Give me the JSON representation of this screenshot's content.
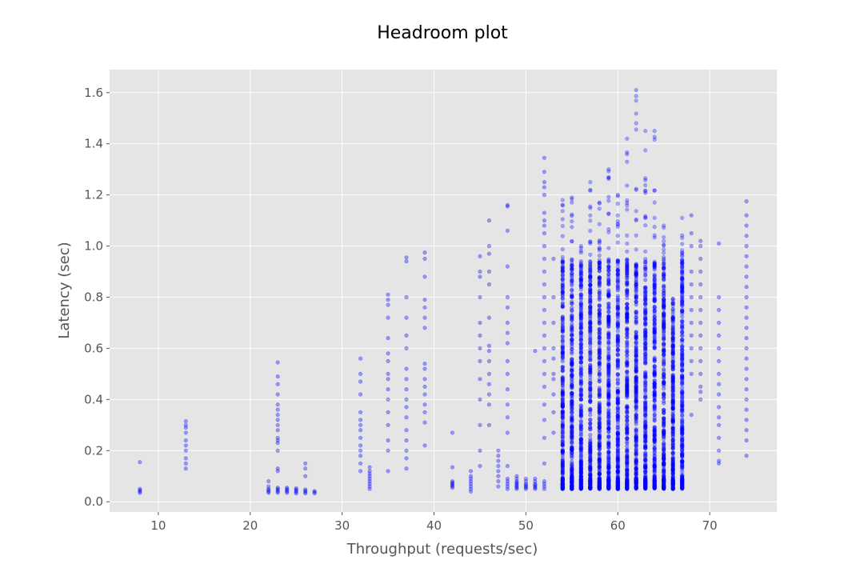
{
  "chart_data": {
    "type": "scatter",
    "title": "Headroom plot",
    "xlabel": "Throughput (requests/sec)",
    "ylabel": "Latency (sec)",
    "xlim": [
      4.7,
      77.3
    ],
    "ylim": [
      -0.04,
      1.69
    ],
    "xticks": [
      10,
      20,
      30,
      40,
      50,
      60,
      70
    ],
    "yticks": [
      0.0,
      0.2,
      0.4,
      0.6,
      0.8,
      1.0,
      1.2,
      1.4,
      1.6
    ],
    "xtick_labels": [
      "10",
      "20",
      "30",
      "40",
      "50",
      "60",
      "70"
    ],
    "ytick_labels": [
      "0.0",
      "0.2",
      "0.4",
      "0.6",
      "0.8",
      "1.0",
      "1.2",
      "1.4",
      "1.6"
    ],
    "grid": true,
    "style": "ggplot",
    "colors": {
      "background": "#e5e5e5",
      "grid": "#ffffff",
      "marker": "#0000ff"
    },
    "series": [
      {
        "x": 8,
        "y": [
          0.035,
          0.04,
          0.045,
          0.05,
          0.155
        ]
      },
      {
        "x": 13,
        "y": [
          0.13,
          0.15,
          0.17,
          0.2,
          0.22,
          0.24,
          0.27,
          0.29,
          0.3,
          0.315
        ]
      },
      {
        "x": 22,
        "y": [
          0.035,
          0.04,
          0.045,
          0.05,
          0.06,
          0.08
        ]
      },
      {
        "x": 23,
        "y": [
          0.035,
          0.04,
          0.045,
          0.05,
          0.055,
          0.12,
          0.13,
          0.2,
          0.23,
          0.24,
          0.25,
          0.28,
          0.3,
          0.32,
          0.34,
          0.36,
          0.38,
          0.42,
          0.46,
          0.49,
          0.545
        ]
      },
      {
        "x": 24,
        "y": [
          0.035,
          0.04,
          0.045,
          0.05,
          0.055
        ]
      },
      {
        "x": 25,
        "y": [
          0.033,
          0.038,
          0.043,
          0.048,
          0.053
        ]
      },
      {
        "x": 26,
        "y": [
          0.033,
          0.038,
          0.043,
          0.048,
          0.1,
          0.13,
          0.15
        ]
      },
      {
        "x": 27,
        "y": [
          0.033,
          0.038,
          0.042
        ]
      },
      {
        "x": 32,
        "y": [
          0.12,
          0.15,
          0.18,
          0.2,
          0.22,
          0.25,
          0.28,
          0.3,
          0.32,
          0.35,
          0.42,
          0.47,
          0.5,
          0.56
        ]
      },
      {
        "x": 33,
        "y": [
          0.05,
          0.06,
          0.07,
          0.08,
          0.09,
          0.1,
          0.11,
          0.12,
          0.135
        ]
      },
      {
        "x": 35,
        "y": [
          0.12,
          0.2,
          0.24,
          0.3,
          0.35,
          0.4,
          0.44,
          0.48,
          0.5,
          0.55,
          0.58,
          0.64,
          0.72,
          0.77,
          0.79,
          0.81
        ]
      },
      {
        "x": 37,
        "y": [
          0.13,
          0.17,
          0.2,
          0.24,
          0.28,
          0.33,
          0.37,
          0.4,
          0.44,
          0.48,
          0.52,
          0.6,
          0.65,
          0.72,
          0.8,
          0.94,
          0.955
        ]
      },
      {
        "x": 39,
        "y": [
          0.22,
          0.31,
          0.35,
          0.38,
          0.42,
          0.45,
          0.48,
          0.52,
          0.54,
          0.68,
          0.72,
          0.76,
          0.79,
          0.88,
          0.95,
          0.975
        ]
      },
      {
        "x": 42,
        "y": [
          0.055,
          0.06,
          0.065,
          0.07,
          0.075,
          0.08,
          0.135,
          0.27
        ]
      },
      {
        "x": 44,
        "y": [
          0.04,
          0.05,
          0.06,
          0.07,
          0.08,
          0.09,
          0.1,
          0.12
        ]
      },
      {
        "x": 45,
        "y": [
          0.14,
          0.2,
          0.3,
          0.4,
          0.48,
          0.55,
          0.6,
          0.65,
          0.7,
          0.8,
          0.88,
          0.9,
          0.96
        ]
      },
      {
        "x": 46,
        "y": [
          0.3,
          0.38,
          0.42,
          0.46,
          0.5,
          0.55,
          0.59,
          0.61,
          0.72,
          0.85,
          0.9,
          0.97,
          1.0,
          1.1
        ]
      },
      {
        "x": 47,
        "y": [
          0.06,
          0.08,
          0.1,
          0.12,
          0.14,
          0.16,
          0.18,
          0.2
        ]
      },
      {
        "x": 48,
        "y": [
          0.05,
          0.06,
          0.07,
          0.08,
          0.09,
          0.14,
          0.27,
          0.33,
          0.38,
          0.44,
          0.5,
          0.55,
          0.62,
          0.66,
          0.7,
          0.76,
          0.8,
          0.92,
          1.06,
          1.155,
          1.16
        ]
      },
      {
        "x": 49,
        "y": [
          0.05,
          0.055,
          0.06,
          0.065,
          0.07,
          0.075,
          0.08,
          0.09,
          0.1
        ]
      },
      {
        "x": 50,
        "y": [
          0.05,
          0.055,
          0.06,
          0.065,
          0.07,
          0.08,
          0.09
        ]
      },
      {
        "x": 51,
        "y": [
          0.05,
          0.055,
          0.06,
          0.065,
          0.07,
          0.08,
          0.09,
          0.59
        ]
      },
      {
        "x": 52,
        "y": [
          0.05,
          0.06,
          0.07,
          0.08,
          0.15,
          0.25,
          0.32,
          0.38,
          0.45,
          0.5,
          0.55,
          0.6,
          0.65,
          0.7,
          0.75,
          0.8,
          0.85,
          0.9,
          0.95,
          1.0,
          1.05,
          1.08,
          1.1,
          1.13,
          1.2,
          1.23,
          1.25,
          1.29,
          1.345
        ]
      },
      {
        "x": 53,
        "y": [
          0.27,
          0.35,
          0.42,
          0.48,
          0.5,
          0.56,
          0.6,
          0.7,
          0.8,
          0.95
        ]
      },
      {
        "range": [
          54,
          67
        ],
        "dense": true,
        "ymin": 0.05,
        "ymax_by_x": {
          "54": 1.18,
          "55": 1.19,
          "56": 1.0,
          "57": 1.25,
          "58": 1.17,
          "59": 1.3,
          "60": 1.2,
          "61": 1.42,
          "62": 1.61,
          "63": 1.45,
          "64": 1.45,
          "65": 1.08,
          "66": 0.72,
          "67": 1.11
        }
      },
      {
        "x": 68,
        "y": [
          0.34,
          0.5,
          0.55,
          0.6,
          0.65,
          0.7,
          0.75,
          0.8,
          0.85,
          0.9,
          1.0,
          1.05,
          1.12
        ]
      },
      {
        "x": 69,
        "y": [
          0.4,
          0.43,
          0.45,
          0.5,
          0.55,
          0.6,
          0.65,
          0.7,
          0.75,
          0.8,
          0.85,
          0.9,
          0.95,
          1.0,
          1.02
        ]
      },
      {
        "x": 71,
        "y": [
          0.15,
          0.16,
          0.2,
          0.25,
          0.3,
          0.33,
          0.37,
          0.42,
          0.46,
          0.5,
          0.55,
          0.6,
          0.65,
          0.7,
          0.75,
          0.8,
          1.01
        ]
      },
      {
        "x": 74,
        "y": [
          0.18,
          0.24,
          0.28,
          0.32,
          0.36,
          0.4,
          0.44,
          0.48,
          0.52,
          0.56,
          0.6,
          0.64,
          0.68,
          0.72,
          0.76,
          0.8,
          0.84,
          0.88,
          0.92,
          0.96,
          1.0,
          1.04,
          1.08,
          1.12,
          1.175
        ]
      }
    ]
  }
}
